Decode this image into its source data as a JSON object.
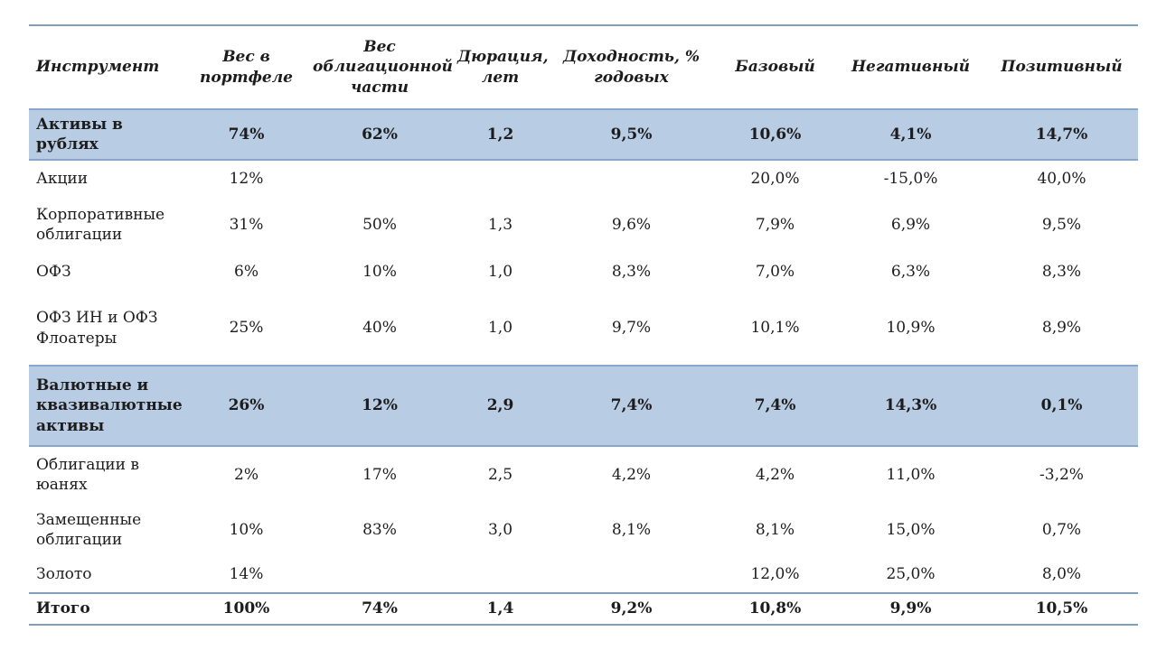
{
  "colors": {
    "section_band_fill": "#b8cce4",
    "section_band_border": "#88a7cc",
    "rule_line": "#7e9fc0",
    "text": "#1c1c1c",
    "background": "#ffffff"
  },
  "chart_data": {
    "type": "table",
    "title": "",
    "columns": [
      "Инструмент",
      "Вес в портфеле",
      "Вес облигационной части",
      "Дюрация, лет",
      "Доходность, % годовых",
      "Базовый",
      "Негативный",
      "Позитивный"
    ],
    "rows": [
      {
        "style": "section",
        "label": "Активы в рублях",
        "values": [
          "74%",
          "62%",
          "1,2",
          "9,5%",
          "10,6%",
          "4,1%",
          "14,7%"
        ]
      },
      {
        "style": "normal",
        "label": "Акции",
        "values": [
          "12%",
          "",
          "",
          "",
          "20,0%",
          "-15,0%",
          "40,0%"
        ]
      },
      {
        "style": "normal",
        "label": "Корпоративные облигации",
        "values": [
          "31%",
          "50%",
          "1,3",
          "9,6%",
          "7,9%",
          "6,9%",
          "9,5%"
        ]
      },
      {
        "style": "normal",
        "label": "ОФЗ",
        "values": [
          "6%",
          "10%",
          "1,0",
          "8,3%",
          "7,0%",
          "6,3%",
          "8,3%"
        ]
      },
      {
        "style": "normal",
        "label": "ОФЗ ИН и ОФЗ Флоатеры",
        "values": [
          "25%",
          "40%",
          "1,0",
          "9,7%",
          "10,1%",
          "10,9%",
          "8,9%"
        ]
      },
      {
        "style": "section",
        "label": "Валютные и квазивалютные активы",
        "values": [
          "26%",
          "12%",
          "2,9",
          "7,4%",
          "7,4%",
          "14,3%",
          "0,1%"
        ]
      },
      {
        "style": "normal",
        "label": "Облигации в юанях",
        "values": [
          "2%",
          "17%",
          "2,5",
          "4,2%",
          "4,2%",
          "11,0%",
          "-3,2%"
        ]
      },
      {
        "style": "normal",
        "label": "Замещенные облигации",
        "values": [
          "10%",
          "83%",
          "3,0",
          "8,1%",
          "8,1%",
          "15,0%",
          "0,7%"
        ]
      },
      {
        "style": "normal",
        "label": "Золото",
        "values": [
          "14%",
          "",
          "",
          "",
          "12,0%",
          "25,0%",
          "8,0%"
        ]
      },
      {
        "style": "total",
        "label": "Итого",
        "values": [
          "100%",
          "74%",
          "1,4",
          "9,2%",
          "10,8%",
          "9,9%",
          "10,5%"
        ]
      }
    ]
  }
}
